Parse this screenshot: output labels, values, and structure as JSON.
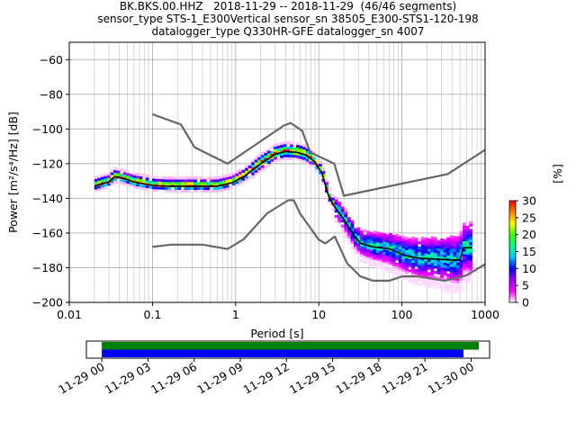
{
  "title_lines": [
    "BK.BKS.00.HHZ   2018-11-29 -- 2018-11-29  (46/46 segments)",
    "sensor_type STS-1_E300Vertical sensor_sn 38505_E300-STS1-120-198",
    "datalogger_type Q330HR-GFE datalogger_sn 4007"
  ],
  "chart_data": [
    {
      "type": "heatmap",
      "xlabel": "Period [s]",
      "ylabel": "Power [m²/s⁴/Hz] [dB]",
      "x_scale": "log",
      "xlim": [
        0.01,
        1000
      ],
      "ylim": [
        -200,
        -50
      ],
      "x_ticks": [
        {
          "value": 0.01,
          "label": "0.01"
        },
        {
          "value": 0.1,
          "label": "0.1"
        },
        {
          "value": 1,
          "label": "1"
        },
        {
          "value": 10,
          "label": "10"
        },
        {
          "value": 100,
          "label": "100"
        },
        {
          "value": 1000,
          "label": "1000"
        }
      ],
      "y_ticks": [
        -60,
        -80,
        -100,
        -120,
        -140,
        -160,
        -180,
        -200
      ],
      "grid": true,
      "colorbar": {
        "label": "[%]",
        "min": 0,
        "max": 30,
        "ticks": [
          0,
          5,
          10,
          15,
          20,
          25,
          30
        ],
        "colors": [
          "#ffffff",
          "#ff00ff",
          "#a000ff",
          "#0000ff",
          "#00c8ff",
          "#00ff80",
          "#40ff00",
          "#ffff00",
          "#ff8000",
          "#ff0000"
        ]
      },
      "nhnm": [
        [
          0.1,
          -91.5
        ],
        [
          0.22,
          -97.4
        ],
        [
          0.32,
          -110.5
        ],
        [
          0.8,
          -120
        ],
        [
          3.8,
          -98
        ],
        [
          4.6,
          -96.5
        ],
        [
          6.3,
          -101
        ],
        [
          7.9,
          -113.5
        ],
        [
          15.4,
          -120
        ],
        [
          20,
          -138.5
        ],
        [
          354.8,
          -126
        ],
        [
          1000,
          -112
        ]
      ],
      "nlnm": [
        [
          0.1,
          -168
        ],
        [
          0.17,
          -166.7
        ],
        [
          0.4,
          -166.7
        ],
        [
          0.8,
          -169.2
        ],
        [
          1.24,
          -163.7
        ],
        [
          2.4,
          -148.6
        ],
        [
          4.3,
          -141.1
        ],
        [
          5,
          -141.1
        ],
        [
          6,
          -149
        ],
        [
          10,
          -163.8
        ],
        [
          12,
          -166
        ],
        [
          15.6,
          -162
        ],
        [
          21.9,
          -177.5
        ],
        [
          31.6,
          -185
        ],
        [
          45,
          -187.5
        ],
        [
          70,
          -187.5
        ],
        [
          101,
          -185
        ],
        [
          154,
          -185
        ],
        [
          328,
          -187.5
        ],
        [
          600,
          -184.4
        ],
        [
          1000,
          -178
        ]
      ],
      "median": [
        [
          0.02,
          -133
        ],
        [
          0.025,
          -131.5
        ],
        [
          0.03,
          -130.5
        ],
        [
          0.035,
          -127.5
        ],
        [
          0.045,
          -128.5
        ],
        [
          0.06,
          -130.5
        ],
        [
          0.1,
          -132.5
        ],
        [
          0.15,
          -133
        ],
        [
          0.3,
          -133
        ],
        [
          0.6,
          -133
        ],
        [
          0.9,
          -131
        ],
        [
          1.3,
          -127
        ],
        [
          2,
          -120
        ],
        [
          3,
          -114.5
        ],
        [
          4,
          -113
        ],
        [
          5.5,
          -113.5
        ],
        [
          7,
          -115
        ],
        [
          9,
          -119
        ],
        [
          11,
          -126
        ],
        [
          13,
          -138
        ],
        [
          15,
          -144
        ],
        [
          18,
          -149
        ],
        [
          22,
          -155
        ],
        [
          27,
          -162
        ],
        [
          32,
          -166
        ],
        [
          45,
          -168
        ],
        [
          70,
          -169
        ],
        [
          110,
          -173
        ],
        [
          160,
          -174.5
        ],
        [
          250,
          -175
        ],
        [
          400,
          -175.5
        ],
        [
          500,
          -175.5
        ],
        [
          550,
          -168.5
        ],
        [
          700,
          -168.5
        ]
      ],
      "x_label": "Period [s]"
    },
    {
      "type": "timeline",
      "xlim": [
        "2018-11-29 00:00",
        "2018-11-30 02:00"
      ],
      "tick_labels": [
        "11-29 00",
        "11-29 03",
        "11-29 06",
        "11-29 09",
        "11-29 12",
        "11-29 15",
        "11-29 18",
        "11-29 21",
        "11-30 00"
      ],
      "bars": [
        {
          "color": "#008000",
          "start_hour": 0,
          "end_hour": 24.5
        },
        {
          "color": "#0000ff",
          "start_hour": 0,
          "end_hour": 23.5
        }
      ]
    }
  ]
}
